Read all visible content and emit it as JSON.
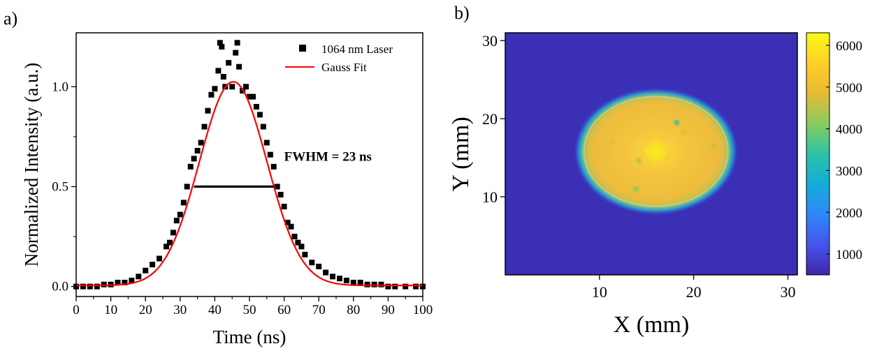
{
  "chart_data": [
    {
      "panel_label": "a)",
      "type": "scatter",
      "title": "",
      "xlabel": "Time (ns)",
      "ylabel": "Normalized Intensity (a.u.)",
      "xlim": [
        0,
        100
      ],
      "ylim": [
        -0.05,
        1.27
      ],
      "xticks": [
        0,
        10,
        20,
        30,
        40,
        50,
        60,
        70,
        80,
        90,
        100
      ],
      "yticks": [
        0.0,
        0.5,
        1.0
      ],
      "ytick_labels": [
        "0.0",
        "0.5",
        "1.0"
      ],
      "grid": false,
      "legend_position": "top-right",
      "series": [
        {
          "name": "1064 nm Laser",
          "kind": "scatter",
          "marker": "square",
          "color": "#000000",
          "x": [
            0,
            2,
            4,
            6,
            8,
            10,
            12,
            14,
            16,
            18,
            20,
            22,
            24,
            26,
            27,
            28,
            29,
            30,
            31,
            32,
            33,
            34,
            35,
            36,
            37,
            38,
            39,
            40,
            41,
            41.5,
            42,
            42.5,
            43,
            44,
            45,
            46,
            46.5,
            47,
            48,
            49,
            50,
            51,
            52,
            53,
            54,
            55,
            56,
            57,
            58,
            59,
            60,
            61,
            62,
            63,
            64,
            65,
            66,
            68,
            70,
            72,
            74,
            76,
            78,
            80,
            82,
            84,
            86,
            88,
            90,
            92,
            95,
            98,
            100
          ],
          "y": [
            0.0,
            0.0,
            0.0,
            0.0,
            0.01,
            0.01,
            0.02,
            0.02,
            0.03,
            0.05,
            0.08,
            0.11,
            0.14,
            0.2,
            0.22,
            0.27,
            0.33,
            0.36,
            0.42,
            0.5,
            0.6,
            0.64,
            0.68,
            0.72,
            0.8,
            0.88,
            0.96,
            0.99,
            1.08,
            1.22,
            1.2,
            1.05,
            1.0,
            1.12,
            1.0,
            1.17,
            1.22,
            1.1,
            0.98,
            1.0,
            0.95,
            0.95,
            0.9,
            0.86,
            0.8,
            0.72,
            0.66,
            0.6,
            0.5,
            0.46,
            0.4,
            0.32,
            0.3,
            0.25,
            0.22,
            0.2,
            0.16,
            0.12,
            0.1,
            0.07,
            0.05,
            0.04,
            0.03,
            0.02,
            0.02,
            0.01,
            0.01,
            0.01,
            0.0,
            0.0,
            0.0,
            0.0,
            0.0
          ]
        },
        {
          "name": "Gauss Fit",
          "kind": "line",
          "color": "#ff0000",
          "center": 45.3,
          "amplitude": 1.02,
          "fwhm": 23.0,
          "offset": 0.005
        }
      ],
      "annotations": [
        {
          "text": "FWHM = 23 ns",
          "x": 60,
          "y": 0.63
        }
      ],
      "fwhm_line": {
        "x_start": 34,
        "x_end": 57,
        "y": 0.5
      }
    },
    {
      "panel_label": "b)",
      "type": "heatmap",
      "title": "",
      "xlabel": "X (mm)",
      "ylabel": "Y (mm)",
      "xlim": [
        0,
        31
      ],
      "ylim": [
        0,
        31
      ],
      "xticks": [
        10,
        20,
        30
      ],
      "yticks": [
        10,
        20,
        30
      ],
      "colorbar": {
        "min": 500,
        "max": 6300,
        "ticks": [
          1000,
          2000,
          3000,
          4000,
          5000,
          6000
        ],
        "colors": [
          "#3e26a8",
          "#4552ec",
          "#2e88f6",
          "#13aed8",
          "#2bc3a4",
          "#8dcb5d",
          "#ecba31",
          "#fdd127",
          "#f9fb15"
        ]
      },
      "background_value": 700,
      "beam_spot": {
        "center_x": 16,
        "center_y": 15.8,
        "radius_x": 8.5,
        "radius_y": 7.9,
        "peak_value": 6000,
        "plateau_value": 5600
      },
      "spots": [
        {
          "x": 18.2,
          "y": 19.5,
          "value": 3600
        },
        {
          "x": 14.2,
          "y": 14.6,
          "value": 4400
        },
        {
          "x": 13.9,
          "y": 11.0,
          "value": 4200
        },
        {
          "x": 22.1,
          "y": 16.5,
          "value": 4600
        },
        {
          "x": 11.3,
          "y": 17.0,
          "value": 4900
        },
        {
          "x": 18.9,
          "y": 18.3,
          "value": 4800
        },
        {
          "x": 15.4,
          "y": 21.0,
          "value": 5000
        }
      ]
    }
  ]
}
